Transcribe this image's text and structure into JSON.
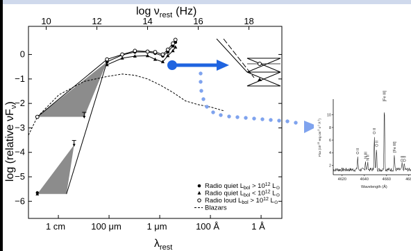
{
  "chart_data": [
    {
      "type": "scatter",
      "title": "",
      "top_axis_label": "log ν",
      "top_axis_label_sub": "rest",
      "top_axis_label_unit": "(Hz)",
      "top_ticks": [
        "10",
        "12",
        "14",
        "16",
        "18"
      ],
      "xlabel": "λ",
      "xlabel_sub": "rest",
      "bottom_ticks": [
        "1 cm",
        "100 μm",
        "1 μm",
        "100 Å",
        "1 Å"
      ],
      "ylabel": "log (relative νF",
      "ylabel_sub": "ν",
      "ylabel_close": ")",
      "y_ticks": [
        "0",
        "−1",
        "−2",
        "−3",
        "−4",
        "−5",
        "−6"
      ],
      "xlim_log_nu": [
        9.3,
        19.3
      ],
      "ylim": [
        -6.7,
        1.15
      ],
      "series": [
        {
          "name_main": "Radio quiet L",
          "name_sub": "bol",
          "name_tail": " > 10",
          "name_sup": "12",
          "name_unit": " L",
          "name_unit_sub": "⊙",
          "marker": "filled-circle",
          "x": [
            12.4,
            13.0,
            13.5,
            14.0,
            14.3,
            14.6,
            14.8,
            15.0,
            15.1
          ],
          "y": [
            -0.3,
            -0.02,
            0.1,
            0.1,
            0.05,
            -0.06,
            0.1,
            0.35,
            0.5
          ]
        },
        {
          "name_main": "Radio quiet L",
          "name_sub": "bol",
          "name_tail": " < 10",
          "name_sup": "12",
          "name_unit": " L",
          "name_unit_sub": "⊙",
          "marker": "filled-triangle",
          "x": [
            12.4,
            13.0,
            13.5,
            14.0,
            14.3,
            14.6,
            14.8,
            15.0,
            15.1
          ],
          "y": [
            -0.42,
            -0.15,
            -0.07,
            -0.05,
            -0.2,
            -0.3,
            -0.05,
            0.15,
            0.3
          ]
        },
        {
          "name_main": "Radio loud L",
          "name_sub": "bol",
          "name_tail": " > 10",
          "name_sup": "12",
          "name_unit": " L",
          "name_unit_sub": "⊙",
          "marker": "open-circle",
          "x": [
            9.65,
            12.4,
            13.0,
            13.5,
            14.0,
            14.3,
            14.6,
            14.8,
            15.0,
            15.1
          ],
          "y": [
            -2.55,
            -0.2,
            0.0,
            0.15,
            0.12,
            0.1,
            0.0,
            0.2,
            0.45,
            0.6
          ]
        },
        {
          "name_main": "Blazars",
          "marker": "dashed-line",
          "x": [
            9.3,
            9.65,
            10.5,
            11.5,
            12.4,
            13.0,
            13.5,
            14.0,
            14.5,
            15.0,
            15.5,
            16.0,
            16.5,
            17.0
          ],
          "y": [
            -3.3,
            -2.55,
            -1.65,
            -1.1,
            -0.9,
            -0.8,
            -0.85,
            -1.0,
            -1.25,
            -1.55,
            -1.9,
            -2.05,
            -2.15,
            -2.3
          ]
        }
      ],
      "radio_upper_limits": {
        "x": [
          11.5,
          11.1
        ],
        "y": [
          -2.45,
          -3.6
        ]
      },
      "radio_lower_points": {
        "x": [
          9.65,
          9.65
        ],
        "y": [
          -5.7,
          -5.65
        ]
      }
    },
    {
      "type": "line",
      "title": "",
      "xlabel": "Wavelength (Å)",
      "ylabel": "Flux (10",
      "ylabel_sup": "-15",
      "ylabel_tail": " erg cm",
      "ylabel_sup2": "-2",
      "ylabel_tail2": " s",
      "ylabel_sup3": "-1",
      "ylabel_tail3": " Å",
      "ylabel_sup4": "-1",
      "ylabel_close": ")",
      "x_ticks": [
        "4620",
        "4640",
        "4660",
        "468"
      ],
      "y_ticks": [
        "2",
        "4",
        "6",
        "8",
        "10"
      ],
      "line_labels": [
        "O II",
        "N III",
        "N II",
        "O II",
        "O II",
        "[Fe III]",
        "[Fe III]",
        "O II",
        "O II"
      ],
      "line_wavelengths": [
        4634,
        4641,
        4643,
        4649,
        4651,
        4658,
        4667,
        4674,
        4676
      ],
      "line_peaks": [
        3.4,
        2.7,
        2.4,
        6.6,
        4.6,
        11.8,
        3.7,
        2.2,
        2.2
      ]
    }
  ]
}
